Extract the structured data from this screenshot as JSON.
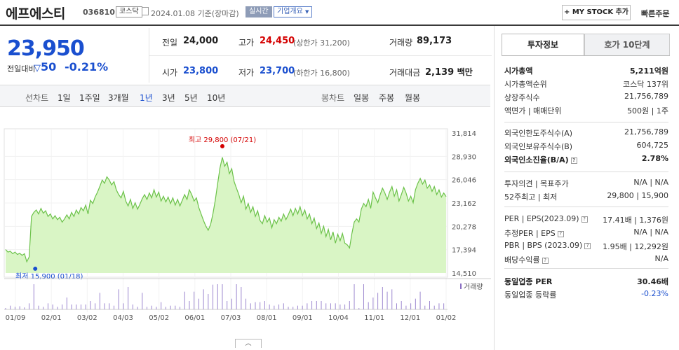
{
  "header": {
    "name": "에프에스티",
    "code": "036810",
    "market": "코스닥",
    "date_text": "2024.01.08  기준(장마감)",
    "live_label": "실시간",
    "company_label": "기업개요",
    "mystock_label": "+ MY STOCK 추가",
    "fastorder_label": "빠른주문"
  },
  "price": {
    "current": "23,950",
    "change_label": "전일대비",
    "change_value": "50",
    "change_pct": "-0.21%"
  },
  "info": {
    "prev_label": "전일",
    "prev_value": "24,000",
    "high_label": "고가",
    "high_value": "24,450",
    "high_sub": "(상한가 31,200)",
    "volume_label": "거래량",
    "volume_value": "89,173",
    "open_label": "시가",
    "open_value": "23,800",
    "low_label": "저가",
    "low_value": "23,700",
    "low_sub": "(하한가 16,800)",
    "amount_label": "거래대금",
    "amount_value": "2,139",
    "amount_unit": "백만"
  },
  "period_bar": {
    "line_label": "선차트",
    "periods": [
      "1일",
      "1주일",
      "3개월",
      "1년",
      "3년",
      "5년",
      "10년"
    ],
    "selected": "1년",
    "candle_label": "봉차트",
    "candles": [
      "일봉",
      "주봉",
      "월봉"
    ]
  },
  "chart_data": {
    "type": "area",
    "y_ticks": [
      "31,814",
      "28,930",
      "26,046",
      "23,162",
      "20,278",
      "17,394",
      "14,510"
    ],
    "ylim": [
      14510,
      31814
    ],
    "x_ticks": [
      "01/09",
      "02/01",
      "03/02",
      "04/03",
      "05/02",
      "06/01",
      "07/03",
      "08/01",
      "09/01",
      "10/04",
      "11/01",
      "12/01",
      "01/02"
    ],
    "series": [
      {
        "values": [
          17400,
          17100,
          17200,
          16900,
          17100,
          16800,
          16950,
          16700,
          16900,
          15900,
          16500,
          21500,
          22000,
          22300,
          21800,
          22500,
          21900,
          22200,
          21500,
          21800,
          21200,
          21600,
          21100,
          21400,
          20800,
          21200,
          21700,
          21200,
          22000,
          21500,
          22300,
          21800,
          22600,
          22200,
          22900,
          21800,
          23500,
          23100,
          23900,
          24500,
          25200,
          26000,
          25600,
          26400,
          26000,
          25400,
          25800,
          24800,
          24200,
          23800,
          24600,
          23400,
          22800,
          23600,
          22500,
          23200,
          22400,
          23000,
          23700,
          24200,
          23600,
          24400,
          23800,
          24800,
          23900,
          24500,
          23400,
          24000,
          23300,
          23900,
          23100,
          23800,
          22900,
          23600,
          22800,
          23500,
          24200,
          23600,
          24800,
          24200,
          23400,
          23800,
          22600,
          21800,
          21000,
          20300,
          19800,
          20500,
          21800,
          23500,
          25500,
          27500,
          28800,
          27700,
          28200,
          26800,
          27400,
          25800,
          25000,
          24200,
          23200,
          24000,
          22400,
          23100,
          22000,
          22700,
          21500,
          22200,
          21000,
          20600,
          21600,
          20800,
          21300,
          20100,
          21100,
          20600,
          21400,
          20900,
          21800,
          21100,
          21700,
          22400,
          21600,
          22500,
          21800,
          22700,
          21600,
          22300,
          21200,
          21800,
          20600,
          21300,
          20000,
          20700,
          19400,
          20300,
          19000,
          19900,
          18600,
          19600,
          18200,
          19300,
          18500,
          19400,
          18200,
          18000,
          17600,
          19400,
          20800,
          21200,
          20800,
          22400,
          23100,
          22700,
          23600,
          22500,
          24500,
          23800,
          23200,
          24200,
          25000,
          24400,
          23600,
          24500,
          25200,
          24000,
          24800,
          23400,
          24200,
          25100,
          24400,
          23400,
          24000,
          23200,
          24800,
          25600,
          26200,
          25500,
          26000,
          25000,
          25400,
          24600,
          25200,
          24200,
          24800,
          23900,
          24400,
          23950
        ]
      }
    ],
    "high_label": "최고 29,800 (07/21)",
    "low_label": "최저 15,900 (01/18)",
    "volume_label": "거래량"
  },
  "panel": {
    "tab_on": "투자정보",
    "tab_off": "호가 10단계",
    "rows1": [
      {
        "label": "시가총액",
        "value": "5,211억원",
        "bold": true
      },
      {
        "label": "시가총액순위",
        "value": "코스닥 137위"
      },
      {
        "label": "상장주식수",
        "value": "21,756,789"
      },
      {
        "label": "액면가 | 매매단위",
        "value": "500원 | 1주"
      }
    ],
    "rows2": [
      {
        "label": "외국인한도주식수(A)",
        "value": "21,756,789"
      },
      {
        "label": "외국인보유주식수(B)",
        "value": "604,725"
      },
      {
        "label": "외국인소진율(B/A)",
        "value": "2.78%",
        "bold": true,
        "q": true
      }
    ],
    "rows3": [
      {
        "label": "투자의견 | 목표주가",
        "value": "N/A | N/A"
      },
      {
        "label": "52주최고 | 최저",
        "value": "29,800 | 15,900"
      }
    ],
    "rows4": [
      {
        "label": "PER | EPS(2023.09)",
        "value": "17.41배 | 1,376원",
        "q": true
      },
      {
        "label": "추정PER | EPS",
        "value": "N/A | N/A",
        "q": true
      },
      {
        "label": "PBR | BPS (2023.09)",
        "value": "1.95배 | 12,292원",
        "q": true
      },
      {
        "label": "배당수익률",
        "value": "N/A",
        "q": true
      }
    ],
    "rows5": [
      {
        "label": "동일업종 PER",
        "value": "30.46배",
        "bold": true
      },
      {
        "label": "동일업종 등락률",
        "value": "-0.23%",
        "blue": true
      }
    ]
  },
  "colors": {
    "accent_red": "#d40000",
    "accent_blue": "#1a4fcf",
    "chart_fill": "#d9f5c5",
    "chart_line": "#6cc24a"
  }
}
